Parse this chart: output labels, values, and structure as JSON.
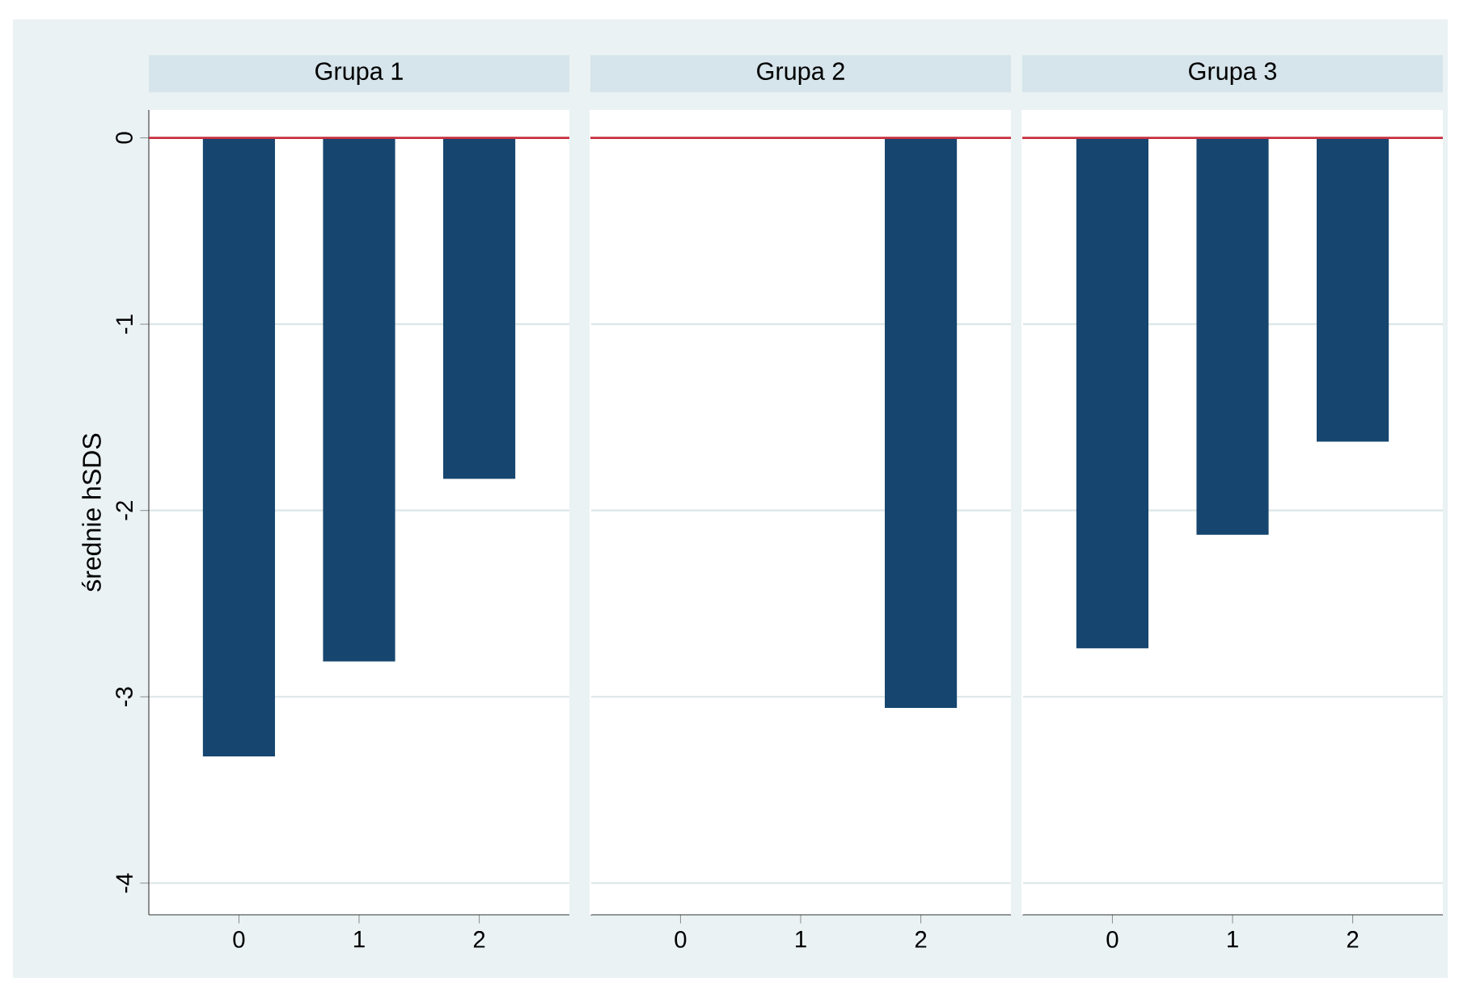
{
  "chart_data": [
    {
      "type": "bar",
      "title": "Grupa 1",
      "ylabel": "średnie hSDS",
      "categories": [
        "0",
        "1",
        "2"
      ],
      "values": [
        -3.32,
        -2.81,
        -1.83
      ],
      "color": "#16466f",
      "ylim": [
        -4.17,
        0.15
      ],
      "yticks": [
        -4,
        -3,
        -2,
        -1,
        0
      ],
      "grid": "y",
      "ref_lines": [
        {
          "axis": "y",
          "value": 0,
          "color": "#c8303f"
        }
      ]
    },
    {
      "type": "bar",
      "title": "Grupa 2",
      "categories": [
        "0",
        "1",
        "2"
      ],
      "values": [
        null,
        null,
        -3.06
      ],
      "color": "#16466f",
      "ylim": [
        -4.17,
        0.15
      ],
      "yticks": [
        -4,
        -3,
        -2,
        -1,
        0
      ],
      "grid": "y",
      "tick_labels": "x",
      "ref_lines": [
        {
          "axis": "y",
          "value": 0,
          "color": "#c8303f"
        }
      ]
    },
    {
      "type": "bar",
      "title": "Grupa 3",
      "categories": [
        "0",
        "1",
        "2"
      ],
      "values": [
        -2.74,
        -2.13,
        -1.63
      ],
      "color": "#16466f",
      "ylim": [
        -4.17,
        0.15
      ],
      "yticks": [
        -4,
        -3,
        -2,
        -1,
        0
      ],
      "grid": "y",
      "tick_labels": "x",
      "ref_lines": [
        {
          "axis": "y",
          "value": 0,
          "color": "#c8303f"
        }
      ]
    }
  ]
}
